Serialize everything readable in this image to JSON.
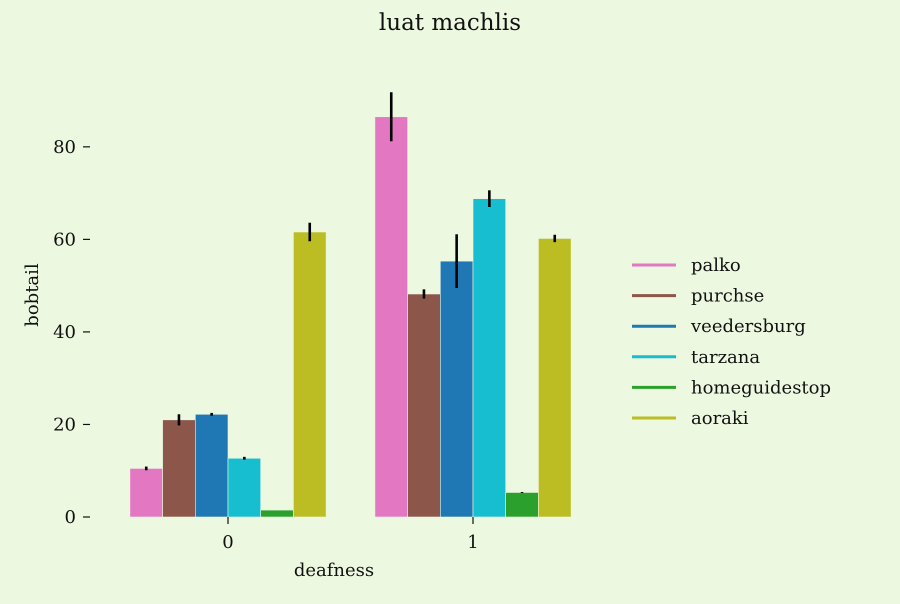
{
  "chart_data": {
    "type": "bar",
    "title": "luat machlis",
    "xlabel": "deafness",
    "ylabel": "bobtail",
    "categories": [
      "0",
      "1"
    ],
    "yticks": [
      0,
      20,
      40,
      60,
      80
    ],
    "ylim": [
      0,
      95
    ],
    "grid": false,
    "legend_position": "right",
    "series": [
      {
        "name": "palko",
        "color": "#e377c2",
        "values": [
          10.5,
          86.5
        ],
        "err": [
          0.4,
          5.3
        ]
      },
      {
        "name": "purchse",
        "color": "#8c564b",
        "values": [
          21.0,
          48.2
        ],
        "err": [
          1.2,
          1.0
        ]
      },
      {
        "name": "veedersburg",
        "color": "#1f77b4",
        "values": [
          22.2,
          55.3
        ],
        "err": [
          0.3,
          5.8
        ]
      },
      {
        "name": "tarzana",
        "color": "#17becf",
        "values": [
          12.7,
          68.8
        ],
        "err": [
          0.3,
          1.8
        ]
      },
      {
        "name": "homeguidestop",
        "color": "#2ca02c",
        "values": [
          1.5,
          5.3
        ],
        "err": [
          0.0,
          0.1
        ]
      },
      {
        "name": "aoraki",
        "color": "#bcbd22",
        "values": [
          61.6,
          60.2
        ],
        "err": [
          2.0,
          0.8
        ]
      }
    ]
  }
}
